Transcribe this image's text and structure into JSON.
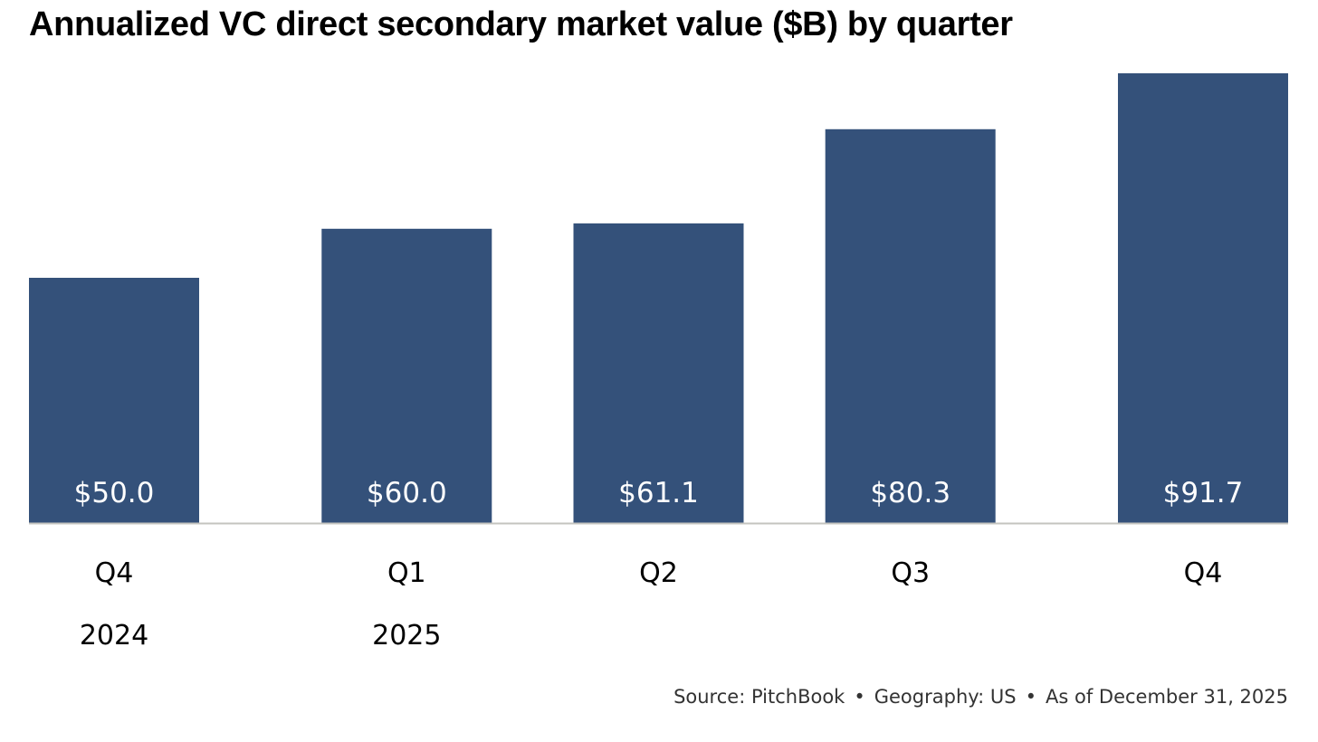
{
  "chart_data": {
    "type": "bar",
    "title": "Annualized VC direct secondary market value ($B) by quarter",
    "categories": [
      "Q4",
      "Q1",
      "Q2",
      "Q3",
      "Q4"
    ],
    "category_groups": [
      "2024",
      "2025",
      "",
      "",
      ""
    ],
    "values": [
      50.0,
      60.0,
      61.1,
      80.3,
      91.7
    ],
    "data_labels": [
      "$50.0",
      "$60.0",
      "$61.1",
      "$80.3",
      "$91.7"
    ],
    "xlabel": "",
    "ylabel": "",
    "ylim": [
      0,
      91.7
    ],
    "grid": false,
    "legend": "none",
    "bar_color": "#34517a",
    "baseline_color": "#c4c4bf"
  },
  "footer": {
    "source": "Source: PitchBook",
    "geography": "Geography: US",
    "as_of": "As of December 31, 2025",
    "separator": "•"
  }
}
